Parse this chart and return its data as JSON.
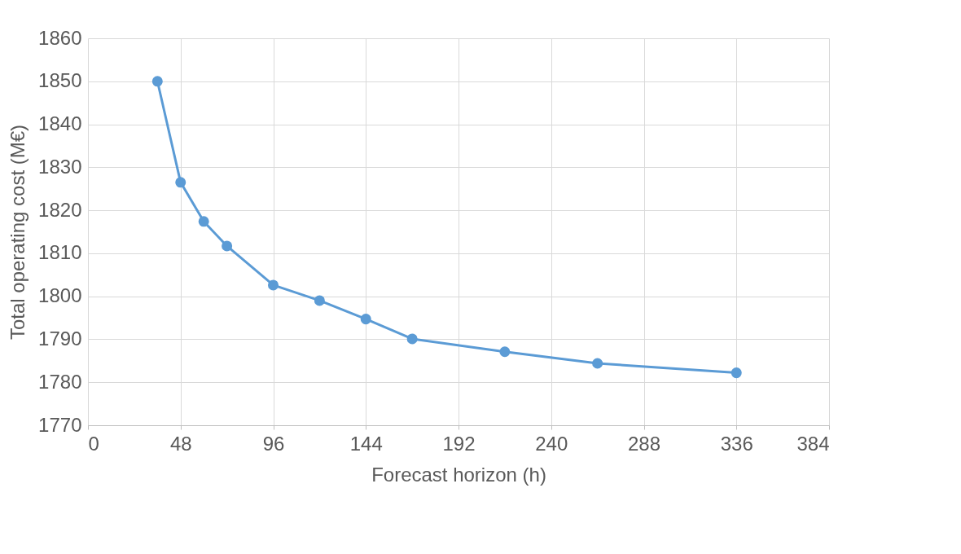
{
  "chart_data": {
    "type": "line",
    "xlabel": "Forecast horizon  (h)",
    "ylabel": "Total operating cost (M€)",
    "x": [
      36,
      48,
      60,
      72,
      96,
      120,
      144,
      168,
      216,
      264,
      336
    ],
    "series": [
      {
        "color": "#5b9bd5",
        "values": [
          1850,
          1826.5,
          1817.4,
          1811.7,
          1802.6,
          1799,
          1794.7,
          1790.1,
          1787.1,
          1784.4,
          1782.2
        ]
      }
    ],
    "xlim": [
      0,
      384
    ],
    "xticks": [
      0,
      48,
      96,
      144,
      192,
      240,
      288,
      336,
      384
    ],
    "ylim": [
      1770,
      1860
    ],
    "yticks": [
      1770,
      1780,
      1790,
      1800,
      1810,
      1820,
      1830,
      1840,
      1850,
      1860
    ],
    "grid": true,
    "marker": "circle",
    "line_style": "solid"
  }
}
